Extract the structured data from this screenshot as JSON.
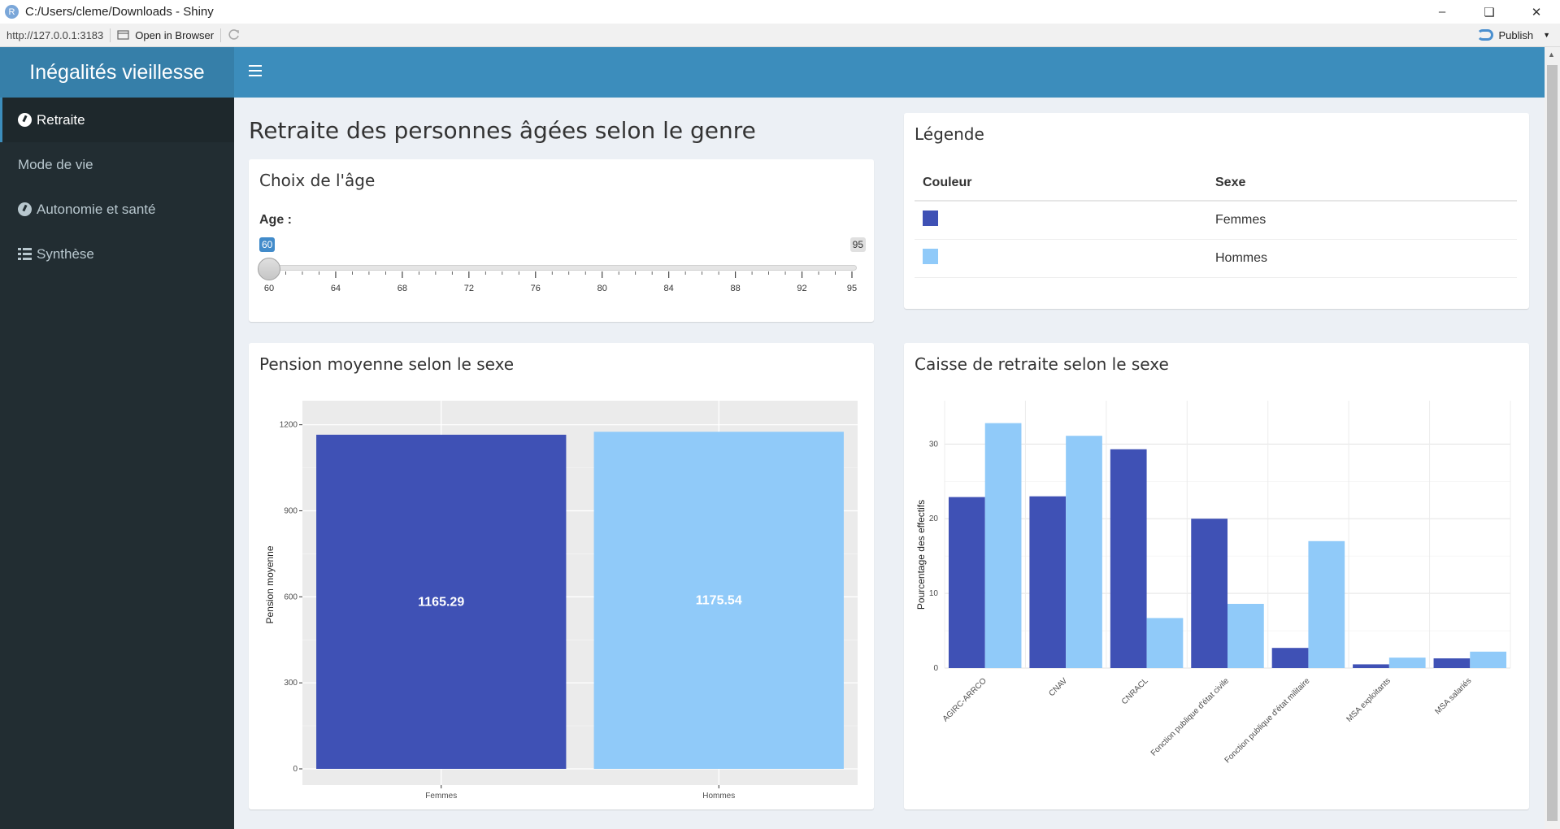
{
  "window": {
    "title": "C:/Users/cleme/Downloads - Shiny",
    "url": "http://127.0.0.1:3183",
    "open_in_browser": "Open in Browser",
    "publish": "Publish",
    "r_logo_letter": "R"
  },
  "header": {
    "app_title": "Inégalités vieillesse"
  },
  "sidebar": {
    "items": [
      {
        "label": "Retraite",
        "icon": "dashboard-icon",
        "active": true
      },
      {
        "label": "Mode de vie",
        "icon": "",
        "active": false
      },
      {
        "label": "Autonomie et santé",
        "icon": "dashboard-icon",
        "active": false
      },
      {
        "label": "Synthèse",
        "icon": "list-icon",
        "active": false
      }
    ]
  },
  "main": {
    "page_title": "Retraite des personnes âgées selon le genre",
    "age_box": {
      "title": "Choix de l'âge",
      "label": "Age :",
      "min": 60,
      "max": 95,
      "value": 60,
      "value_badge": "60",
      "max_badge": "95",
      "ticks": [
        "60",
        "64",
        "68",
        "72",
        "76",
        "80",
        "84",
        "88",
        "92",
        "95"
      ]
    },
    "legend_box": {
      "title": "Légende",
      "col_color": "Couleur",
      "col_sex": "Sexe",
      "rows": [
        {
          "sex": "Femmes",
          "color": "#3f51b5"
        },
        {
          "sex": "Hommes",
          "color": "#90caf9"
        }
      ]
    }
  },
  "colors": {
    "femmes": "#3f51b5",
    "hommes": "#90caf9",
    "accent": "#3c8dbc",
    "logo_bg": "#367fa9",
    "sidebar_bg": "#222d32"
  },
  "chart_data": [
    {
      "type": "bar",
      "title": "Pension moyenne selon le sexe",
      "xlabel": "",
      "ylabel": "Pension moyenne",
      "categories": [
        "Femmes",
        "Hommes"
      ],
      "values": [
        1165.29,
        1175.54
      ],
      "value_labels": [
        "1165.29",
        "1175.54"
      ],
      "ylim": [
        0,
        1250
      ],
      "yticks": [
        "0",
        "300",
        "600",
        "900",
        "1200"
      ],
      "grid": true,
      "background": "#ebebeb"
    },
    {
      "type": "bar",
      "title": "Caisse de retraite selon le sexe",
      "xlabel": "",
      "ylabel": "Pourcentage des effectifs",
      "categories": [
        "AGIRC-ARRCO",
        "CNAV",
        "CNRACL",
        "Fonction publique d'état civile",
        "Fonction publique d'état militaire",
        "MSA exploitants",
        "MSA salariés"
      ],
      "series": [
        {
          "key": "femmes",
          "values": [
            22.9,
            23.0,
            29.3,
            20.0,
            2.7,
            0.5,
            1.3
          ]
        },
        {
          "key": "hommes",
          "values": [
            32.8,
            31.1,
            6.7,
            8.6,
            17.0,
            1.4,
            2.2
          ]
        }
      ],
      "ylim": [
        0,
        34.5
      ],
      "yticks": [
        "0",
        "10",
        "20",
        "30"
      ],
      "grid": true,
      "background": "#ffffff"
    }
  ]
}
